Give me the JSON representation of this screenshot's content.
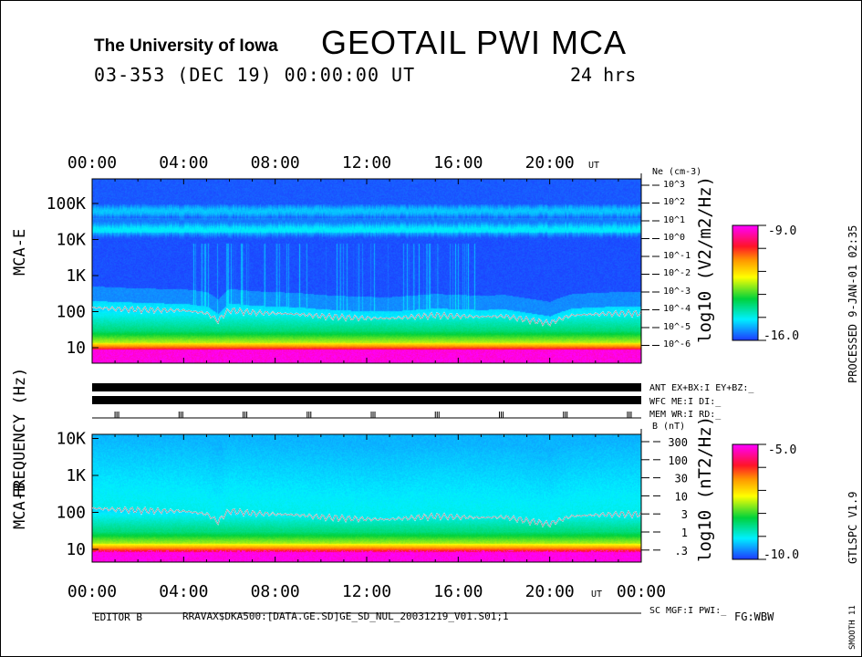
{
  "header": {
    "institution": "The University of Iowa",
    "title": "GEOTAIL PWI MCA",
    "date_line": "03-353 (DEC 19) 00:00:00 UT",
    "duration": "24 hrs"
  },
  "side": {
    "processed": "PROCESSED  9-JAN-01  02:35",
    "version": "GTLSPC   V1.9",
    "smooth": "SMOOTH 11"
  },
  "status": {
    "ant": "ANT EX+BX:I EY+BZ:_",
    "wfc": "WFC ME:I     DI:_",
    "mem": "MEM WR:I     RD:_",
    "sc": "SC MGF:I    PWI:_"
  },
  "footer": {
    "editor": "EDITOR B",
    "file": "RRAVAX$DKA500:[DATA.GE.SD]GE_SD_NUL_20031219_V01.S01;1",
    "fg": "FG:WBW"
  },
  "chart_data": [
    {
      "type": "heatmap",
      "panel": "MCA-E",
      "ylabel": "FREQUENCY (Hz)",
      "panel_label": "MCA-E",
      "x_ticks": [
        "00:00",
        "04:00",
        "08:00",
        "12:00",
        "16:00",
        "20:00"
      ],
      "x_unit": "UT",
      "xlim_hours": [
        0,
        24
      ],
      "y_ticks": [
        "100K",
        "10K",
        "1K",
        "100",
        "10"
      ],
      "ylim_hz": [
        5,
        300000
      ],
      "right_axis_title": "Ne (cm-3)",
      "right_axis_ticks": [
        "10^3",
        "10^2",
        "10^1",
        "10^0",
        "10^-1",
        "10^-2",
        "10^-3",
        "10^-4",
        "10^-5",
        "10^-6"
      ],
      "colorbar": {
        "label": "log10 (V2/m2/Hz)",
        "max": "-9.0",
        "min": "-16.0"
      },
      "overlay_line_hz": {
        "hours": [
          0,
          1,
          2,
          3,
          4,
          5,
          5.5,
          6,
          7,
          8,
          9,
          10,
          11,
          12,
          13,
          14,
          15,
          16,
          17,
          18,
          19,
          20,
          21,
          22,
          23,
          24
        ],
        "values": [
          130,
          120,
          115,
          110,
          108,
          90,
          55,
          110,
          95,
          90,
          85,
          75,
          70,
          66,
          65,
          72,
          80,
          75,
          72,
          75,
          60,
          48,
          80,
          85,
          90,
          90
        ]
      }
    },
    {
      "type": "heatmap",
      "panel": "MCA-B",
      "panel_label": "MCA-B",
      "x_ticks": [
        "00:00",
        "04:00",
        "08:00",
        "12:00",
        "16:00",
        "20:00",
        "00:00"
      ],
      "x_unit": "UT",
      "xlim_hours": [
        0,
        24
      ],
      "y_ticks": [
        "10K",
        "1K",
        "100",
        "10"
      ],
      "ylim_hz": [
        5,
        12000
      ],
      "right_axis_title": "B (nT)",
      "right_axis_ticks": [
        "300",
        "100",
        "30",
        "10",
        "3",
        "1",
        ".3"
      ],
      "colorbar": {
        "label": "log10 (nT2/Hz)",
        "max": "-5.0",
        "min": "-10.0"
      },
      "overlay_line_hz": {
        "hours": [
          0,
          1,
          2,
          3,
          4,
          5,
          5.5,
          6,
          7,
          8,
          9,
          10,
          11,
          12,
          13,
          14,
          15,
          16,
          17,
          18,
          19,
          20,
          21,
          22,
          23,
          24
        ],
        "values": [
          130,
          120,
          115,
          110,
          108,
          90,
          55,
          110,
          95,
          90,
          85,
          75,
          70,
          66,
          65,
          72,
          80,
          75,
          72,
          75,
          60,
          48,
          80,
          85,
          90,
          90
        ]
      }
    }
  ]
}
